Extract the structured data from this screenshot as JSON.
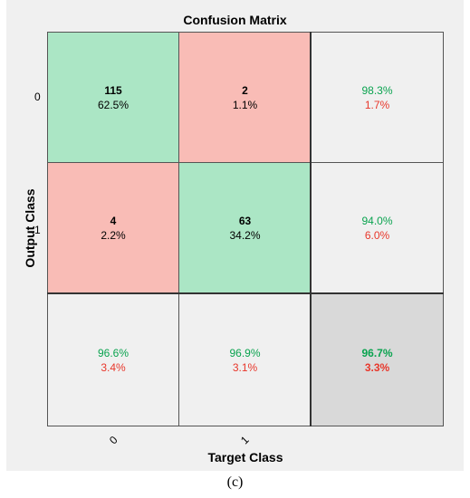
{
  "chart_data": {
    "type": "heatmap",
    "title": "Confusion Matrix",
    "xlabel": "Target Class",
    "ylabel": "Output Class",
    "x_tick_labels": [
      "0",
      "1"
    ],
    "y_tick_labels": [
      "0",
      "1"
    ],
    "matrix": [
      [
        {
          "count": "115",
          "percent": "62.5%"
        },
        {
          "count": "2",
          "percent": "1.1%"
        }
      ],
      [
        {
          "count": "4",
          "percent": "2.2%"
        },
        {
          "count": "63",
          "percent": "34.2%"
        }
      ]
    ],
    "row_summary": [
      {
        "correct": "98.3%",
        "incorrect": "1.7%"
      },
      {
        "correct": "94.0%",
        "incorrect": "6.0%"
      }
    ],
    "column_summary": [
      {
        "correct": "96.6%",
        "incorrect": "3.4%"
      },
      {
        "correct": "96.9%",
        "incorrect": "3.1%"
      }
    ],
    "overall": {
      "correct": "96.7%",
      "incorrect": "3.3%"
    },
    "colors": {
      "correct_cell": "#abe6c5",
      "wrong_cell": "#f9bcb6",
      "summary_cell": "#f0f0f0",
      "overall_cell": "#d9d9d9",
      "correct_text": "#0aa34f",
      "incorrect_text": "#e8372b"
    }
  },
  "caption": "(c)"
}
